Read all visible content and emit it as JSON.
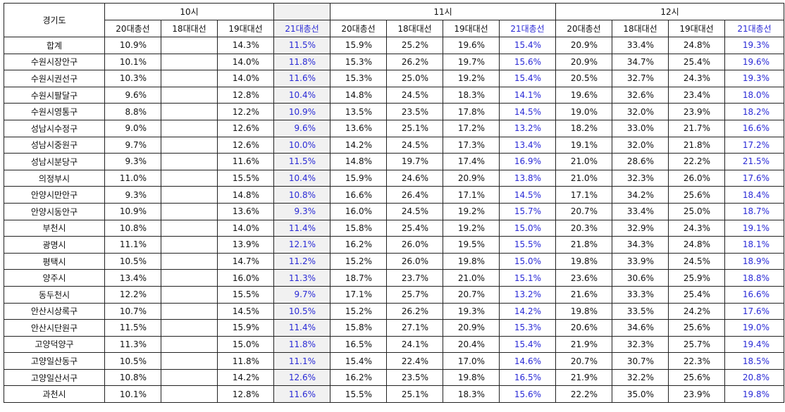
{
  "header": {
    "region_label": "경기도",
    "hour_groups": [
      "10시",
      "11시",
      "12시"
    ],
    "sub_columns": [
      "20대총선",
      "18대대선",
      "19대대선",
      "21대총선"
    ]
  },
  "colors": {
    "highlight_text": "#2a2ad6",
    "highlight_column_bg": "#f1f1f1",
    "border": "#222222"
  },
  "rows": [
    {
      "region": "합계",
      "h10": [
        "10.9%",
        "",
        "14.3%",
        "11.5%"
      ],
      "h11": [
        "15.9%",
        "25.2%",
        "19.6%",
        "15.4%"
      ],
      "h12": [
        "20.9%",
        "33.4%",
        "24.8%",
        "19.3%"
      ]
    },
    {
      "region": "수원시장안구",
      "h10": [
        "10.1%",
        "",
        "14.0%",
        "11.8%"
      ],
      "h11": [
        "15.3%",
        "26.2%",
        "19.7%",
        "15.6%"
      ],
      "h12": [
        "20.9%",
        "34.7%",
        "25.4%",
        "19.6%"
      ]
    },
    {
      "region": "수원시권선구",
      "h10": [
        "10.3%",
        "",
        "14.0%",
        "11.6%"
      ],
      "h11": [
        "15.3%",
        "25.0%",
        "19.2%",
        "15.4%"
      ],
      "h12": [
        "20.5%",
        "32.7%",
        "24.3%",
        "19.3%"
      ]
    },
    {
      "region": "수원시팔달구",
      "h10": [
        "9.6%",
        "",
        "12.8%",
        "10.4%"
      ],
      "h11": [
        "14.8%",
        "24.5%",
        "18.3%",
        "14.1%"
      ],
      "h12": [
        "19.6%",
        "32.6%",
        "23.4%",
        "18.0%"
      ]
    },
    {
      "region": "수원시영통구",
      "h10": [
        "8.8%",
        "",
        "12.2%",
        "10.9%"
      ],
      "h11": [
        "13.5%",
        "23.5%",
        "17.8%",
        "14.5%"
      ],
      "h12": [
        "19.0%",
        "32.0%",
        "23.9%",
        "18.2%"
      ]
    },
    {
      "region": "성남시수정구",
      "h10": [
        "9.0%",
        "",
        "12.6%",
        "9.6%"
      ],
      "h11": [
        "13.6%",
        "25.1%",
        "17.2%",
        "13.2%"
      ],
      "h12": [
        "18.2%",
        "33.0%",
        "21.7%",
        "16.6%"
      ]
    },
    {
      "region": "성남시중원구",
      "h10": [
        "9.7%",
        "",
        "12.6%",
        "10.0%"
      ],
      "h11": [
        "14.2%",
        "24.5%",
        "17.3%",
        "13.4%"
      ],
      "h12": [
        "19.1%",
        "32.0%",
        "21.8%",
        "17.2%"
      ]
    },
    {
      "region": "성남시분당구",
      "h10": [
        "9.3%",
        "",
        "11.6%",
        "11.5%"
      ],
      "h11": [
        "14.8%",
        "19.7%",
        "17.4%",
        "16.9%"
      ],
      "h12": [
        "21.0%",
        "28.6%",
        "22.2%",
        "21.5%"
      ]
    },
    {
      "region": "의정부시",
      "h10": [
        "11.0%",
        "",
        "15.5%",
        "10.4%"
      ],
      "h11": [
        "15.9%",
        "24.6%",
        "20.9%",
        "13.8%"
      ],
      "h12": [
        "21.0%",
        "32.3%",
        "26.0%",
        "17.6%"
      ]
    },
    {
      "region": "안양시만안구",
      "h10": [
        "9.3%",
        "",
        "14.8%",
        "10.8%"
      ],
      "h11": [
        "16.6%",
        "26.4%",
        "17.1%",
        "14.5%"
      ],
      "h12": [
        "17.1%",
        "34.2%",
        "25.6%",
        "18.4%"
      ]
    },
    {
      "region": "안양시동안구",
      "h10": [
        "10.9%",
        "",
        "13.6%",
        "9.3%"
      ],
      "h11": [
        "16.0%",
        "24.5%",
        "19.2%",
        "15.7%"
      ],
      "h12": [
        "20.7%",
        "33.4%",
        "25.0%",
        "18.7%"
      ]
    },
    {
      "region": "부천시",
      "h10": [
        "10.8%",
        "",
        "14.0%",
        "11.4%"
      ],
      "h11": [
        "15.8%",
        "25.4%",
        "19.2%",
        "15.0%"
      ],
      "h12": [
        "20.3%",
        "32.9%",
        "24.3%",
        "19.1%"
      ]
    },
    {
      "region": "광명시",
      "h10": [
        "11.1%",
        "",
        "13.9%",
        "12.1%"
      ],
      "h11": [
        "16.2%",
        "26.0%",
        "19.5%",
        "15.5%"
      ],
      "h12": [
        "21.8%",
        "34.3%",
        "24.8%",
        "18.1%"
      ]
    },
    {
      "region": "평택시",
      "h10": [
        "10.5%",
        "",
        "14.7%",
        "11.2%"
      ],
      "h11": [
        "15.2%",
        "26.0%",
        "19.8%",
        "15.0%"
      ],
      "h12": [
        "19.8%",
        "33.9%",
        "24.5%",
        "18.9%"
      ]
    },
    {
      "region": "양주시",
      "h10": [
        "13.4%",
        "",
        "16.0%",
        "11.3%"
      ],
      "h11": [
        "18.7%",
        "23.7%",
        "21.0%",
        "15.1%"
      ],
      "h12": [
        "23.6%",
        "30.6%",
        "25.9%",
        "18.8%"
      ]
    },
    {
      "region": "동두천시",
      "h10": [
        "12.2%",
        "",
        "15.5%",
        "9.7%"
      ],
      "h11": [
        "17.1%",
        "25.7%",
        "20.7%",
        "13.2%"
      ],
      "h12": [
        "21.6%",
        "33.3%",
        "25.4%",
        "16.6%"
      ]
    },
    {
      "region": "안산시상록구",
      "h10": [
        "10.7%",
        "",
        "14.5%",
        "10.5%"
      ],
      "h11": [
        "15.2%",
        "26.2%",
        "19.3%",
        "14.2%"
      ],
      "h12": [
        "19.8%",
        "33.5%",
        "24.2%",
        "17.6%"
      ]
    },
    {
      "region": "안산시단원구",
      "h10": [
        "11.5%",
        "",
        "15.9%",
        "11.4%"
      ],
      "h11": [
        "15.8%",
        "27.1%",
        "20.9%",
        "15.3%"
      ],
      "h12": [
        "20.6%",
        "34.6%",
        "25.6%",
        "19.0%"
      ]
    },
    {
      "region": "고양덕양구",
      "h10": [
        "11.3%",
        "",
        "15.0%",
        "11.8%"
      ],
      "h11": [
        "16.5%",
        "24.1%",
        "20.4%",
        "15.4%"
      ],
      "h12": [
        "21.9%",
        "32.3%",
        "25.7%",
        "19.4%"
      ]
    },
    {
      "region": "고양일산동구",
      "h10": [
        "10.5%",
        "",
        "11.8%",
        "11.1%"
      ],
      "h11": [
        "15.4%",
        "22.4%",
        "17.0%",
        "14.6%"
      ],
      "h12": [
        "20.7%",
        "30.7%",
        "22.3%",
        "18.5%"
      ]
    },
    {
      "region": "고양일산서구",
      "h10": [
        "10.8%",
        "",
        "14.2%",
        "12.6%"
      ],
      "h11": [
        "16.2%",
        "23.5%",
        "19.8%",
        "16.5%"
      ],
      "h12": [
        "21.9%",
        "32.2%",
        "25.6%",
        "20.8%"
      ]
    },
    {
      "region": "과천시",
      "h10": [
        "10.1%",
        "",
        "12.8%",
        "11.6%"
      ],
      "h11": [
        "15.5%",
        "25.1%",
        "18.3%",
        "15.6%"
      ],
      "h12": [
        "22.2%",
        "35.0%",
        "23.9%",
        "19.8%"
      ]
    }
  ]
}
